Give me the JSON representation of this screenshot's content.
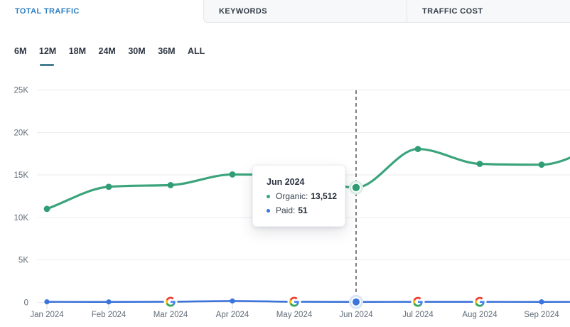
{
  "tabs": [
    {
      "label": "TOTAL TRAFFIC",
      "active": true
    },
    {
      "label": "KEYWORDS",
      "active": false
    },
    {
      "label": "TRAFFIC COST",
      "active": false
    }
  ],
  "period_selector": {
    "options": [
      "6M",
      "12M",
      "18M",
      "24M",
      "30M",
      "36M",
      "ALL"
    ],
    "selected": "12M"
  },
  "tooltip": {
    "title": "Jun 2024",
    "rows": [
      {
        "label": "Organic:",
        "value": "13,512",
        "color": "#3ca47c"
      },
      {
        "label": "Paid:",
        "value": "51",
        "color": "#3c74da"
      }
    ]
  },
  "chart_data": {
    "type": "line",
    "x": [
      "Jan 2024",
      "Feb 2024",
      "Mar 2024",
      "Apr 2024",
      "May 2024",
      "Jun 2024",
      "Jul 2024",
      "Aug 2024",
      "Sep 2024"
    ],
    "series": [
      {
        "name": "Organic",
        "color": "#3ca47c",
        "dot_color": "#2f9e74",
        "values": [
          11000,
          13600,
          13800,
          15050,
          14900,
          13512,
          18050,
          16300,
          16200
        ],
        "offscreen_next_value": 18700
      },
      {
        "name": "Paid",
        "color": "#3c74da",
        "dot_color": "#3b74dd",
        "values": [
          60,
          50,
          70,
          160,
          70,
          51,
          60,
          60,
          55
        ],
        "offscreen_next_value": 60
      }
    ],
    "y_ticks": [
      0,
      5000,
      10000,
      15000,
      20000,
      25000
    ],
    "y_tick_labels": [
      "0",
      "5K",
      "10K",
      "15K",
      "20K",
      "25K"
    ],
    "ylim": [
      0,
      25000
    ],
    "grid": true,
    "selected_month": "Jun 2024",
    "google_update_months": [
      "Mar 2024",
      "May 2024",
      "Jul 2024",
      "Aug 2024"
    ],
    "legend_position": "none"
  },
  "colors": {
    "active_tab_text": "#2e7fc1",
    "inactive_tab_text": "#333b48",
    "inactive_tab_bg": "#f7f8f9",
    "tab_border": "#e3e6ea",
    "period_underline": "#44808f",
    "grid_line": "#ececee",
    "axis_label": "#626c78",
    "cursor_line": "#2b2b2b",
    "organic_halo": "#daf0e6",
    "paid_halo": "#d9e5f6",
    "google_blue": "#4285F4",
    "google_red": "#EA4335",
    "google_yellow": "#FBBC05",
    "google_green": "#34A853"
  }
}
